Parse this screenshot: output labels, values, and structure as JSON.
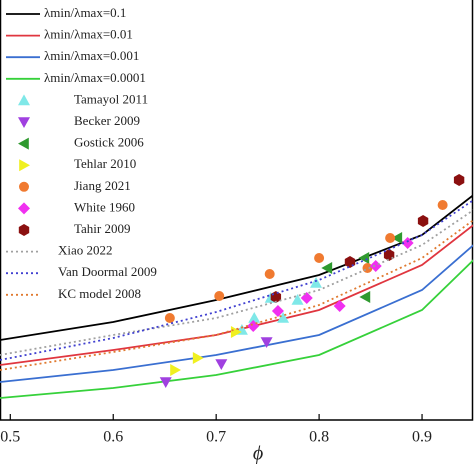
{
  "chart_data": {
    "type": "line",
    "xlabel": "ϕ",
    "xlim": [
      0.49,
      0.9495
    ],
    "ylim": [
      0,
      4.2
    ],
    "xticks": [
      0.5,
      0.6,
      0.7,
      0.8,
      0.9
    ],
    "legend": "upper left",
    "series": [
      {
        "name": "λmin/λmax=0.1",
        "kind": "line",
        "style": "solid",
        "color": "#000000",
        "x": [
          0.49,
          0.6,
          0.7,
          0.8,
          0.9,
          0.95
        ],
        "values": [
          0.8,
          0.98,
          1.2,
          1.45,
          1.85,
          2.25
        ]
      },
      {
        "name": "λmin/λmax=0.01",
        "kind": "line",
        "style": "solid",
        "color": "#e0363f",
        "x": [
          0.49,
          0.6,
          0.7,
          0.8,
          0.9,
          0.95
        ],
        "values": [
          0.55,
          0.7,
          0.85,
          1.1,
          1.55,
          1.95
        ]
      },
      {
        "name": "λmin/λmax=0.001",
        "kind": "line",
        "style": "solid",
        "color": "#3a6fd1",
        "x": [
          0.49,
          0.6,
          0.7,
          0.8,
          0.9,
          0.95
        ],
        "values": [
          0.38,
          0.5,
          0.65,
          0.85,
          1.3,
          1.75
        ]
      },
      {
        "name": "λmin/λmax=0.0001",
        "kind": "line",
        "style": "solid",
        "color": "#36d13a",
        "x": [
          0.49,
          0.6,
          0.7,
          0.8,
          0.9,
          0.95
        ],
        "values": [
          0.22,
          0.32,
          0.45,
          0.65,
          1.1,
          1.6
        ]
      },
      {
        "name": "Tamayol 2011",
        "kind": "scatter",
        "marker": "up",
        "color": "#7fe8e8",
        "x": [
          0.753,
          0.737,
          0.779,
          0.797,
          0.765,
          0.725
        ],
        "values": [
          1.22,
          1.02,
          1.2,
          1.37,
          1.02,
          0.9
        ]
      },
      {
        "name": "Becker 2009",
        "kind": "scatter",
        "marker": "down",
        "color": "#a040e0",
        "x": [
          0.651,
          0.705,
          0.749
        ],
        "values": [
          0.38,
          0.56,
          0.78
        ]
      },
      {
        "name": "Gostick 2006",
        "kind": "scatter",
        "marker": "left",
        "color": "#2f9a2f",
        "x": [
          0.808,
          0.845,
          0.876,
          0.844
        ],
        "values": [
          1.52,
          1.23,
          1.82,
          1.62
        ]
      },
      {
        "name": "Tehlar 2010",
        "kind": "scatter",
        "marker": "right",
        "color": "#f0f020",
        "x": [
          0.682,
          0.719,
          0.66
        ],
        "values": [
          0.62,
          0.88,
          0.5
        ]
      },
      {
        "name": "Jiang 2021",
        "kind": "scatter",
        "marker": "circle",
        "color": "#f07a30",
        "x": [
          0.655,
          0.703,
          0.752,
          0.8,
          0.847,
          0.869,
          0.92
        ],
        "values": [
          1.02,
          1.24,
          1.46,
          1.62,
          1.52,
          1.82,
          2.15
        ]
      },
      {
        "name": "White 1960",
        "kind": "scatter",
        "marker": "diamond",
        "color": "#f030f0",
        "x": [
          0.736,
          0.76,
          0.788,
          0.82,
          0.855,
          0.886
        ],
        "values": [
          0.94,
          1.09,
          1.22,
          1.14,
          1.54,
          1.77
        ]
      },
      {
        "name": "Tahir 2009",
        "kind": "scatter",
        "marker": "hex",
        "color": "#8b1010",
        "x": [
          0.758,
          0.83,
          0.868,
          0.901,
          0.936
        ],
        "values": [
          1.23,
          1.58,
          1.65,
          1.99,
          2.4
        ]
      },
      {
        "name": "Xiao 2022",
        "kind": "line",
        "style": "dotted",
        "color": "#a0a0a0",
        "x": [
          0.49,
          0.6,
          0.7,
          0.8,
          0.9,
          0.95
        ],
        "values": [
          0.65,
          0.85,
          1.02,
          1.3,
          1.75,
          2.1
        ]
      },
      {
        "name": "Van Doormal 2009",
        "kind": "line",
        "style": "dotted",
        "color": "#4040d0",
        "x": [
          0.49,
          0.6,
          0.7,
          0.8,
          0.9,
          0.95
        ],
        "values": [
          0.6,
          0.82,
          1.08,
          1.4,
          1.85,
          2.2
        ]
      },
      {
        "name": "KC model 2008",
        "kind": "line",
        "style": "dotted",
        "color": "#e07a30",
        "x": [
          0.49,
          0.6,
          0.7,
          0.8,
          0.9,
          0.95
        ],
        "values": [
          0.5,
          0.68,
          0.85,
          1.15,
          1.62,
          2.0
        ]
      }
    ]
  }
}
